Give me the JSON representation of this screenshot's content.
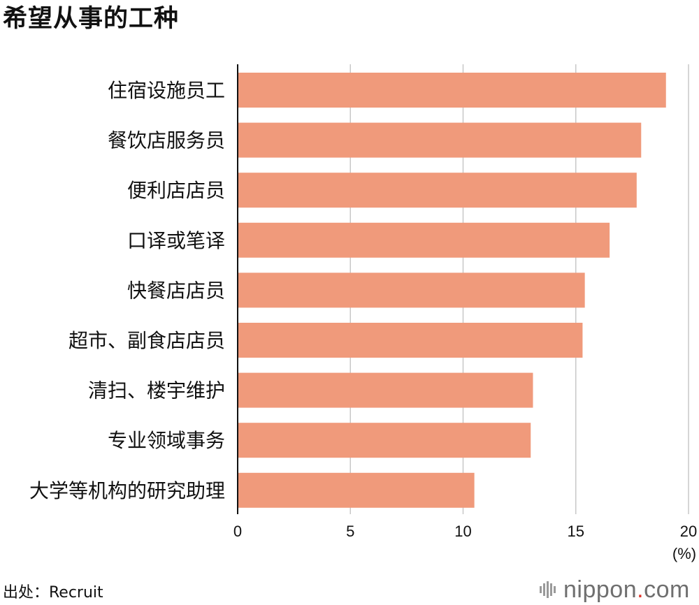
{
  "chart_data": {
    "type": "bar",
    "orientation": "horizontal",
    "title": "希望从事的工种",
    "categories": [
      "住宿设施员工",
      "餐饮店服务员",
      "便利店店员",
      "口译或笔译",
      "快餐店店员",
      "超市、副食店店员",
      "清扫、楼宇维护",
      "专业领域事务",
      "大学等机构的研究助理"
    ],
    "values": [
      19.0,
      17.9,
      17.7,
      16.5,
      15.4,
      15.3,
      13.1,
      13.0,
      10.5
    ],
    "x_ticks": [
      "0",
      "5",
      "10",
      "15",
      "20"
    ],
    "x_tick_values": [
      0,
      5,
      10,
      15,
      20
    ],
    "xlim": [
      0,
      20
    ],
    "unit_label": "(%)",
    "bar_color": "#f09a7b",
    "grid": true,
    "source": "出处：Recruit"
  },
  "brand": {
    "name_main": "nippon",
    "name_dot": ".",
    "name_tail": "com",
    "accent_color": "#e0352b"
  }
}
